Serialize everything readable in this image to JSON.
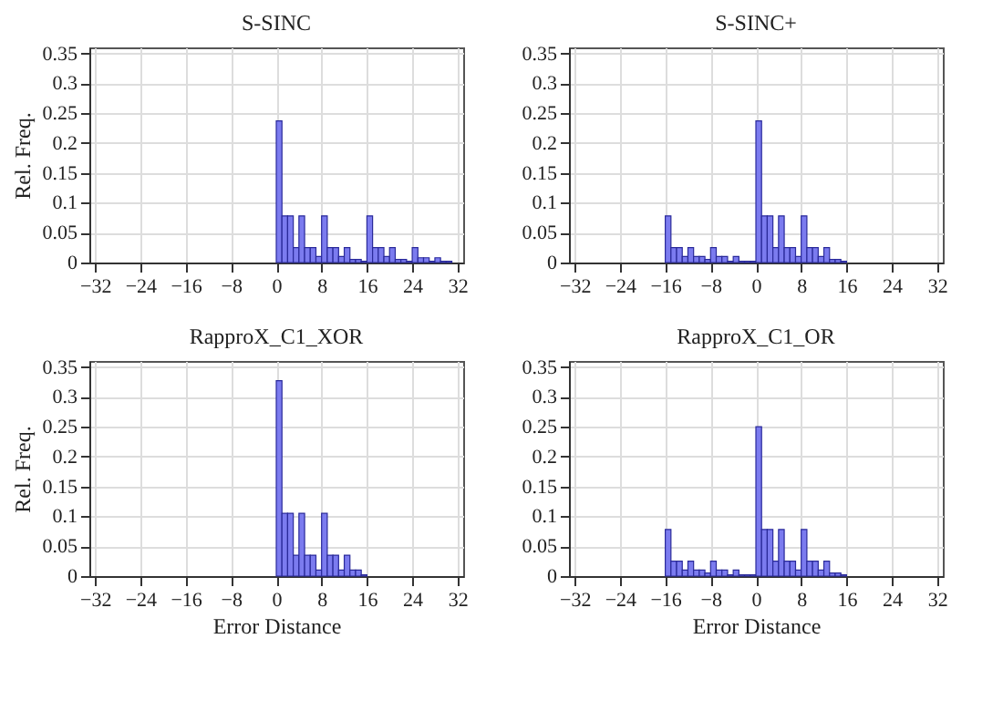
{
  "chart_data": [
    {
      "type": "histogram",
      "title": "S-SINC",
      "ylabel": "Rel. Freq.",
      "color": "#7b7bef",
      "bins": [
        0,
        1,
        2,
        3,
        4,
        5,
        6,
        7,
        8,
        9,
        10,
        11,
        12,
        13,
        14,
        15,
        16,
        17,
        18,
        19,
        20,
        21,
        22,
        23,
        24,
        25,
        26,
        27,
        28,
        29,
        30,
        31
      ],
      "values": [
        0.237,
        0.078,
        0.078,
        0.025,
        0.078,
        0.025,
        0.025,
        0.01,
        0.078,
        0.025,
        0.025,
        0.01,
        0.025,
        0.005,
        0.005,
        0.002,
        0.078,
        0.025,
        0.025,
        0.01,
        0.025,
        0.005,
        0.005,
        0.002,
        0.025,
        0.008,
        0.008,
        0.002,
        0.008,
        0.002,
        0.002
      ],
      "xlim": [
        -33,
        33
      ],
      "xticks": [
        {
          "value": -32,
          "label": "−32"
        },
        {
          "value": -24,
          "label": "−24"
        },
        {
          "value": -16,
          "label": "−16"
        },
        {
          "value": -8,
          "label": "−8"
        },
        0,
        8,
        16,
        24,
        32
      ],
      "ylim": [
        0,
        0.36
      ],
      "yticks": [
        0,
        0.05,
        0.1,
        0.15,
        0.2,
        0.25,
        0.3,
        0.35
      ],
      "grid": true
    },
    {
      "type": "histogram",
      "title": "S-SINC+",
      "color": "#7b7bef",
      "bins": [
        -16,
        -15,
        -14,
        -13,
        -12,
        -11,
        -10,
        -9,
        -8,
        -7,
        -6,
        -5,
        -4,
        -3,
        -2,
        -1,
        0,
        1,
        2,
        3,
        4,
        5,
        6,
        7,
        8,
        9,
        10,
        11,
        12,
        13,
        14,
        15,
        16
      ],
      "values": [
        0.078,
        0.025,
        0.025,
        0.01,
        0.025,
        0.01,
        0.01,
        0.005,
        0.025,
        0.01,
        0.01,
        0.002,
        0.01,
        0.002,
        0.002,
        0.002,
        0.237,
        0.078,
        0.078,
        0.025,
        0.078,
        0.025,
        0.025,
        0.01,
        0.078,
        0.025,
        0.025,
        0.01,
        0.025,
        0.005,
        0.005,
        0.002
      ],
      "xlim": [
        -33,
        33
      ],
      "xticks": [
        {
          "value": -32,
          "label": "−32"
        },
        {
          "value": -24,
          "label": "−24"
        },
        {
          "value": -16,
          "label": "−16"
        },
        {
          "value": -8,
          "label": "−8"
        },
        0,
        8,
        16,
        24,
        32
      ],
      "ylim": [
        0,
        0.36
      ],
      "yticks": [
        0,
        0.05,
        0.1,
        0.15,
        0.2,
        0.25,
        0.3,
        0.35
      ],
      "grid": true
    },
    {
      "type": "histogram",
      "title": "RapproX_C1_XOR",
      "ylabel": "Rel. Freq.",
      "xlabel": "Error Distance",
      "color": "#7b7bef",
      "bins": [
        0,
        1,
        2,
        3,
        4,
        5,
        6,
        7,
        8,
        9,
        10,
        11,
        12,
        13,
        14,
        15,
        16
      ],
      "values": [
        0.327,
        0.105,
        0.105,
        0.035,
        0.105,
        0.035,
        0.035,
        0.01,
        0.105,
        0.035,
        0.035,
        0.01,
        0.035,
        0.01,
        0.01,
        0.002
      ],
      "xlim": [
        -33,
        33
      ],
      "xticks": [
        {
          "value": -32,
          "label": "−32"
        },
        {
          "value": -24,
          "label": "−24"
        },
        {
          "value": -16,
          "label": "−16"
        },
        {
          "value": -8,
          "label": "−8"
        },
        0,
        8,
        16,
        24,
        32
      ],
      "ylim": [
        0,
        0.36
      ],
      "yticks": [
        0,
        0.05,
        0.1,
        0.15,
        0.2,
        0.25,
        0.3,
        0.35
      ],
      "grid": true
    },
    {
      "type": "histogram",
      "title": "RapproX_C1_OR",
      "xlabel": "Error Distance",
      "color": "#7b7bef",
      "bins": [
        -16,
        -15,
        -14,
        -13,
        -12,
        -11,
        -10,
        -9,
        -8,
        -7,
        -6,
        -5,
        -4,
        -3,
        -2,
        -1,
        0,
        1,
        2,
        3,
        4,
        5,
        6,
        7,
        8,
        9,
        10,
        11,
        12,
        13,
        14,
        15,
        16
      ],
      "values": [
        0.078,
        0.025,
        0.025,
        0.01,
        0.025,
        0.01,
        0.01,
        0.005,
        0.025,
        0.01,
        0.01,
        0.002,
        0.01,
        0.002,
        0.002,
        0.002,
        0.25,
        0.078,
        0.078,
        0.025,
        0.078,
        0.025,
        0.025,
        0.01,
        0.078,
        0.025,
        0.025,
        0.01,
        0.025,
        0.005,
        0.005,
        0.002
      ],
      "xlim": [
        -33,
        33
      ],
      "xticks": [
        {
          "value": -32,
          "label": "−32"
        },
        {
          "value": -24,
          "label": "−24"
        },
        {
          "value": -16,
          "label": "−16"
        },
        {
          "value": -8,
          "label": "−8"
        },
        0,
        8,
        16,
        24,
        32
      ],
      "ylim": [
        0,
        0.36
      ],
      "yticks": [
        0,
        0.05,
        0.1,
        0.15,
        0.2,
        0.25,
        0.3,
        0.35
      ],
      "grid": true
    }
  ]
}
